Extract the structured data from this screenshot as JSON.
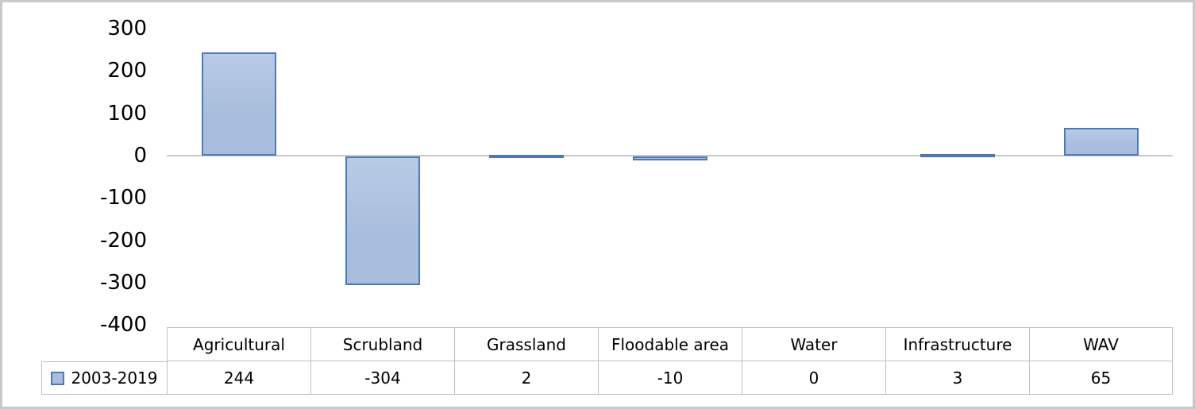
{
  "chart_data": {
    "type": "bar",
    "title": "",
    "xlabel": "",
    "ylabel": "",
    "categories": [
      "Agricultural",
      "Scrubland",
      "Grassland",
      "Floodable area",
      "Water",
      "Infrastructure",
      "WAV"
    ],
    "series": [
      {
        "name": "2003-2019",
        "values": [
          244,
          -304,
          2,
          -10,
          0,
          3,
          65
        ]
      }
    ],
    "yticks": [
      300,
      200,
      100,
      0,
      -100,
      -200,
      -300,
      -400
    ],
    "ylim": [
      -400,
      300
    ],
    "grid": false,
    "legend_position": "bottom-left",
    "has_data_table": true
  },
  "legend": {
    "series_label": "2003-2019",
    "marker_icon": "blue-square"
  },
  "colors": {
    "bar_fill": "#a9bedd",
    "bar_fill_top": "#b8cae5",
    "bar_border": "#4e79b6",
    "axis_line": "#c9c9c9",
    "table_border": "#bfbfbf",
    "frame_border": "#c9c9c9",
    "text": "#000000",
    "background": "#ffffff"
  }
}
